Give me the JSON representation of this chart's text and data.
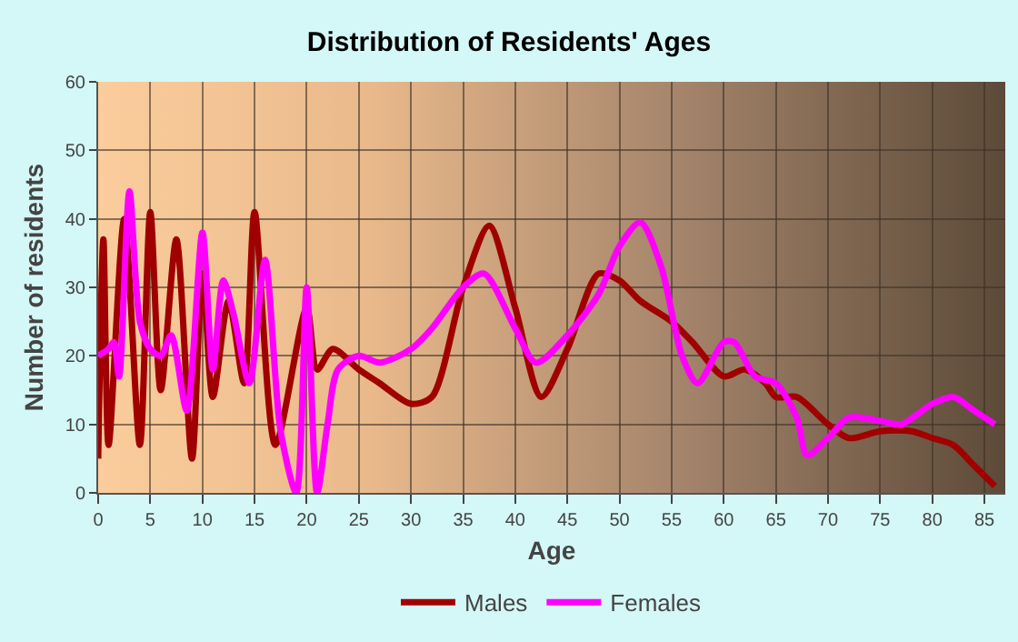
{
  "chart_data": {
    "type": "line",
    "title": "Distribution of Residents' Ages",
    "xlabel": "Age",
    "ylabel": "Number of residents",
    "xlim": [
      0,
      87
    ],
    "xticks": [
      0,
      5,
      10,
      15,
      20,
      25,
      30,
      35,
      40,
      45,
      50,
      55,
      60,
      65,
      70,
      75,
      80,
      85
    ],
    "ylim": [
      0,
      60
    ],
    "yticks": [
      0,
      10,
      20,
      30,
      40,
      50,
      60
    ],
    "grid": true,
    "legend": "bottom",
    "line_style": "solid",
    "marker": "none",
    "series": [
      {
        "name": "Males",
        "color": "#a00000",
        "x": [
          0,
          0.5,
          1,
          2.5,
          4,
          5,
          6,
          7.5,
          9,
          10,
          11,
          12.5,
          14,
          15,
          17,
          20,
          21,
          22.5,
          25,
          27,
          30,
          32,
          35,
          37.5,
          40,
          42.5,
          45,
          48,
          50,
          52,
          55,
          57,
          60,
          62,
          64,
          65,
          67,
          70,
          72,
          75,
          78,
          80,
          82,
          84,
          86
        ],
        "values": [
          5,
          37,
          7,
          40,
          7,
          41,
          15,
          37,
          5,
          32,
          14,
          28,
          16,
          41,
          7,
          27,
          18,
          21,
          18,
          16,
          13,
          14,
          30,
          39,
          27,
          14,
          21,
          32,
          31,
          28,
          25,
          22,
          17,
          18,
          16,
          14,
          14,
          10,
          8,
          9,
          9,
          8,
          7,
          4,
          1
        ]
      },
      {
        "name": "Females",
        "color": "#ff00ff",
        "x": [
          0,
          1,
          1.5,
          2,
          3,
          4,
          5,
          6,
          7,
          8.5,
          10,
          11,
          12,
          13,
          14.5,
          16,
          17.5,
          19,
          20,
          21,
          22,
          23,
          25,
          27,
          30,
          32,
          35,
          37,
          40,
          42,
          45,
          48,
          50,
          52,
          54,
          56,
          57.5,
          60,
          61,
          63,
          65,
          67,
          68,
          70,
          72,
          75,
          77,
          80,
          82,
          84,
          86
        ],
        "values": [
          20,
          21,
          22,
          17,
          44,
          25,
          21,
          20,
          23,
          12,
          38,
          18,
          31,
          26,
          16,
          34,
          9,
          0,
          30,
          0,
          10,
          18,
          20,
          19,
          21,
          24,
          30,
          32,
          24,
          19,
          23,
          29,
          36,
          39.5,
          33,
          20,
          16,
          22,
          22,
          17,
          16,
          11,
          5.5,
          8,
          11,
          10.5,
          10,
          13,
          14,
          12,
          10
        ]
      }
    ]
  }
}
